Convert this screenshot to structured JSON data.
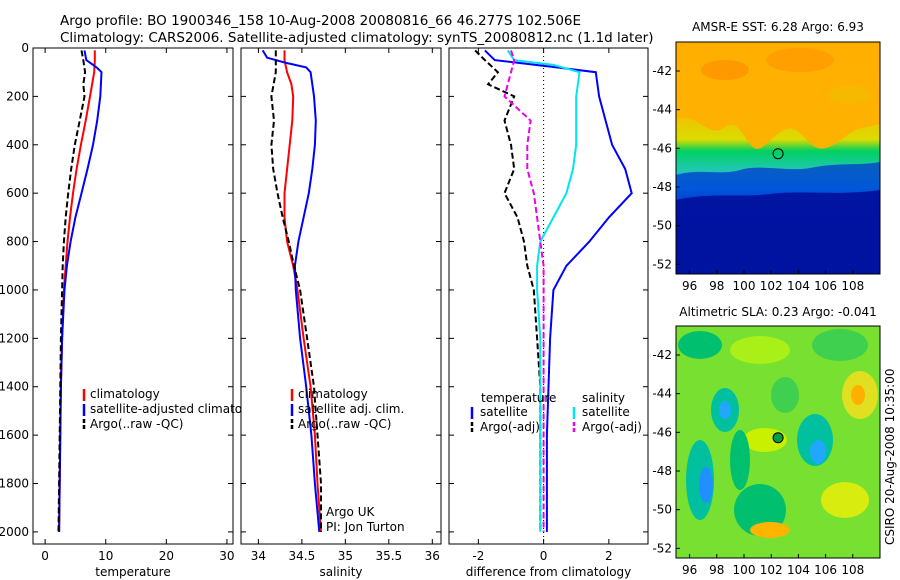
{
  "header": {
    "line1": "Argo profile: BO 1900346_158 10-Aug-2008 20080816_66 46.277S 102.506E",
    "line2": "Climatology: CARS2006. Satellite-adjusted climatology: synTS_20080812.nc (1.1d later)"
  },
  "side_label": "CSIRO 20-Aug-2008 10:35:00",
  "colors": {
    "climatology": "#ff0000",
    "satellite": "#0000ff",
    "argo": "#000000",
    "temp_satellite_diff": "#00e5ee",
    "salinity_argo_diff": "#ee00ee"
  },
  "chart_data": [
    {
      "type": "line",
      "xlabel": "temperature",
      "xlim": [
        -2,
        31
      ],
      "xticks": [
        0,
        10,
        20,
        30
      ],
      "ylim": [
        2050,
        0
      ],
      "yticks": [
        0,
        200,
        400,
        600,
        800,
        1000,
        1200,
        1400,
        1600,
        1800,
        2000
      ],
      "legend": [
        "climatology",
        "satellite-adjusted climatology",
        "Argo(..raw -QC)"
      ],
      "series": [
        {
          "name": "climatology",
          "color": "#ff0000",
          "dash": "",
          "y": [
            10,
            50,
            100,
            200,
            300,
            400,
            500,
            600,
            700,
            800,
            900,
            1000,
            1200,
            1400,
            1600,
            1800,
            2000
          ],
          "x": [
            8.2,
            8.2,
            8.1,
            7.4,
            6.7,
            5.9,
            5.2,
            4.6,
            4.1,
            3.7,
            3.4,
            3.1,
            2.8,
            2.6,
            2.5,
            2.4,
            2.3
          ]
        },
        {
          "name": "satellite-adjusted climatology",
          "color": "#0000ff",
          "dash": "",
          "y": [
            10,
            50,
            80,
            100,
            200,
            300,
            400,
            500,
            600,
            700,
            800,
            900,
            1000,
            1200,
            1400,
            1600,
            1800,
            2000
          ],
          "x": [
            6.5,
            6.8,
            8.5,
            9.3,
            9.1,
            8.6,
            7.9,
            7.0,
            6.0,
            5.0,
            4.2,
            3.6,
            3.2,
            2.8,
            2.6,
            2.5,
            2.4,
            2.3
          ]
        },
        {
          "name": "Argo(..raw -QC)",
          "color": "#000000",
          "dash": "6,3",
          "y": [
            10,
            50,
            100,
            150,
            200,
            300,
            400,
            500,
            600,
            700,
            800,
            900,
            1000,
            1200,
            1400,
            1600,
            1800,
            2000
          ],
          "x": [
            6.0,
            6.3,
            6.6,
            6.3,
            6.5,
            5.7,
            4.9,
            4.3,
            3.8,
            3.4,
            3.1,
            2.9,
            2.8,
            2.6,
            2.5,
            2.4,
            2.3,
            2.2
          ]
        }
      ]
    },
    {
      "type": "line",
      "xlabel": "salinity",
      "xlim": [
        33.8,
        36.1
      ],
      "xticks": [
        34,
        34.5,
        35,
        35.5,
        36
      ],
      "ylim": [
        2050,
        0
      ],
      "yticks": [
        0,
        200,
        400,
        600,
        800,
        1000,
        1200,
        1400,
        1600,
        1800,
        2000
      ],
      "legend": [
        "climatology",
        "satellite adj. clim.",
        "Argo(..raw -QC)"
      ],
      "annotation": [
        "Argo UK",
        "PI: Jon Turton"
      ],
      "series": [
        {
          "name": "climatology",
          "color": "#ff0000",
          "dash": "",
          "y": [
            10,
            50,
            100,
            150,
            200,
            300,
            400,
            500,
            600,
            700,
            800,
            900,
            1000,
            1200,
            1400,
            1600,
            1800,
            2000
          ],
          "x": [
            34.3,
            34.3,
            34.33,
            34.38,
            34.4,
            34.39,
            34.36,
            34.33,
            34.3,
            34.3,
            34.33,
            34.4,
            34.45,
            34.52,
            34.6,
            34.65,
            34.68,
            34.72
          ]
        },
        {
          "name": "satellite adj. clim.",
          "color": "#0000ff",
          "dash": "",
          "y": [
            10,
            40,
            60,
            80,
            100,
            150,
            200,
            300,
            400,
            500,
            600,
            700,
            800,
            900,
            1000,
            1200,
            1400,
            1600,
            1800,
            2000
          ],
          "x": [
            34.05,
            34.1,
            34.3,
            34.55,
            34.6,
            34.62,
            34.64,
            34.66,
            34.65,
            34.62,
            34.58,
            34.52,
            34.46,
            34.42,
            34.43,
            34.48,
            34.55,
            34.61,
            34.65,
            34.7
          ]
        },
        {
          "name": "Argo(..raw -QC)",
          "color": "#000000",
          "dash": "6,3",
          "y": [
            10,
            100,
            200,
            300,
            400,
            500,
            600,
            700,
            800,
            900,
            1000,
            1200,
            1400,
            1600,
            1800,
            2000
          ],
          "x": [
            34.2,
            34.2,
            34.15,
            34.18,
            34.15,
            34.17,
            34.22,
            34.28,
            34.35,
            34.41,
            34.48,
            34.56,
            34.64,
            34.68,
            34.72,
            34.72
          ]
        }
      ]
    },
    {
      "type": "line",
      "xlabel": "difference from climatology",
      "xlim": [
        -2.9,
        3.2
      ],
      "xticks": [
        -2,
        0,
        2
      ],
      "ylim": [
        2050,
        0
      ],
      "yticks": [
        0,
        200,
        400,
        600,
        800,
        1000,
        1200,
        1400,
        1600,
        1800,
        2000
      ],
      "legend_headers": [
        "temperature",
        "salinity"
      ],
      "legend": [
        "satellite",
        "Argo(-adj)",
        "satellite",
        "Argo(-adj)"
      ],
      "series": [
        {
          "name": "temperature satellite",
          "color": "#0000ff",
          "dash": "",
          "y": [
            10,
            50,
            80,
            100,
            200,
            300,
            400,
            500,
            600,
            700,
            800,
            900,
            1000,
            1200,
            1400,
            1600,
            1800,
            2000
          ],
          "x": [
            -1.8,
            -1.5,
            0.4,
            1.6,
            1.7,
            1.9,
            2.1,
            2.5,
            2.7,
            2.0,
            1.4,
            0.7,
            0.3,
            0.2,
            0.15,
            0.1,
            0.1,
            0.1
          ]
        },
        {
          "name": "temperature Argo(-adj)",
          "color": "#000000",
          "dash": "6,3",
          "y": [
            10,
            50,
            100,
            150,
            200,
            300,
            400,
            500,
            600,
            700,
            800,
            900,
            1000,
            1200,
            1400,
            1600,
            1800,
            2000
          ],
          "x": [
            -2.1,
            -1.8,
            -1.4,
            -1.7,
            -0.9,
            -1.2,
            -1.0,
            -0.9,
            -1.2,
            -0.8,
            -0.6,
            -0.5,
            -0.3,
            -0.2,
            -0.1,
            -0.1,
            -0.1,
            -0.1
          ]
        },
        {
          "name": "salinity satellite",
          "color": "#00e5ee",
          "dash": "",
          "y": [
            10,
            50,
            70,
            100,
            200,
            300,
            400,
            500,
            600,
            700,
            800,
            900,
            1000,
            1200,
            1400,
            1600,
            1800,
            2000
          ],
          "x": [
            -1.1,
            -0.9,
            0.3,
            1.1,
            1.0,
            1.0,
            1.0,
            0.9,
            0.7,
            0.3,
            -0.1,
            -0.2,
            -0.2,
            -0.1,
            -0.1,
            -0.1,
            -0.1,
            -0.1
          ]
        },
        {
          "name": "salinity Argo(-adj)",
          "color": "#ee00ee",
          "dash": "6,3",
          "y": [
            10,
            50,
            100,
            200,
            300,
            400,
            500,
            600,
            700,
            800,
            900,
            1000,
            1200,
            1400,
            1600,
            1800,
            2000
          ],
          "x": [
            -1.0,
            -0.9,
            -1.0,
            -1.2,
            -0.4,
            -0.5,
            -0.5,
            -0.3,
            -0.2,
            -0.1,
            0.0,
            0.0,
            0.0,
            0.0,
            0.0,
            0.0,
            0.0
          ]
        }
      ]
    },
    {
      "type": "heatmap",
      "title": "AMSR-E SST: 6.28  Argo: 6.93",
      "xlim": [
        95,
        110
      ],
      "ylim": [
        -52.5,
        -40.5
      ],
      "xticks": [
        96,
        98,
        100,
        102,
        104,
        106,
        108
      ],
      "yticks": [
        -42,
        -44,
        -46,
        -48,
        -50,
        -52
      ],
      "marker": {
        "lon": 102.506,
        "lat": -46.277
      }
    },
    {
      "type": "heatmap",
      "title": "Altimetric SLA: 0.23  Argo: -0.041",
      "xlim": [
        95,
        110
      ],
      "ylim": [
        -52.5,
        -40.5
      ],
      "xticks": [
        96,
        98,
        100,
        102,
        104,
        106,
        108
      ],
      "yticks": [
        -42,
        -44,
        -46,
        -48,
        -50,
        -52
      ],
      "marker": {
        "lon": 102.506,
        "lat": -46.277
      }
    }
  ]
}
